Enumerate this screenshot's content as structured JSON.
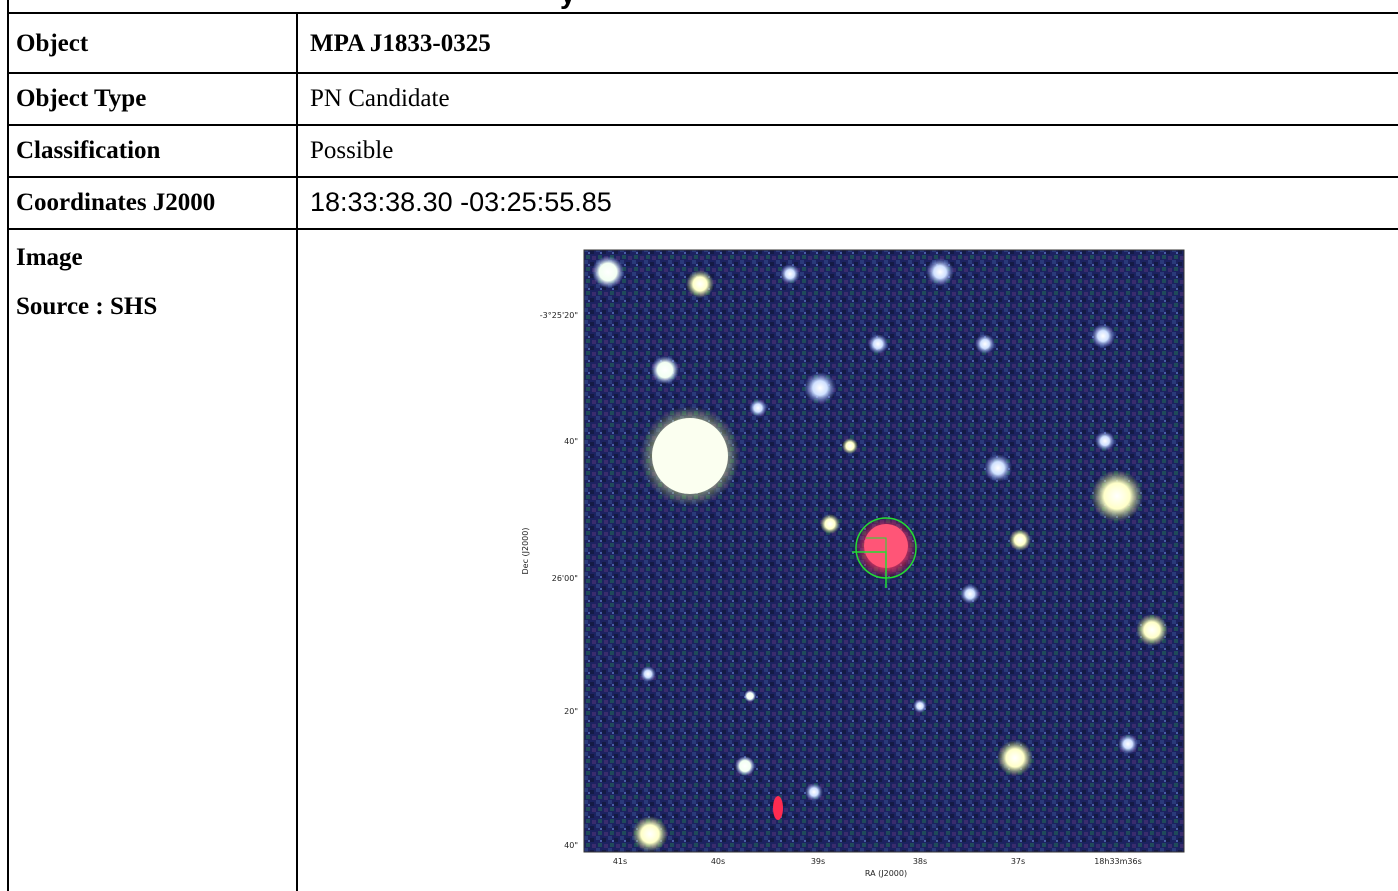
{
  "table": {
    "rows": [
      {
        "label": "Object",
        "value": "MPA J1833-0325"
      },
      {
        "label": "Object Type",
        "value": "PN Candidate"
      },
      {
        "label": "Classification",
        "value": "Possible"
      },
      {
        "label": "Coordinates J2000",
        "value": "18:33:38.30 -03:25:55.85"
      }
    ],
    "image_label": "Image",
    "image_source": "Source : SHS"
  },
  "figure": {
    "dec_ticks": [
      "-3°25'20\"",
      "40\"",
      "26'00\"",
      "20\"",
      "40\""
    ],
    "ra_ticks": [
      "41s",
      "40s",
      "39s",
      "38s",
      "37s",
      "18h33m36s"
    ],
    "ylabel": "Dec (J2000)",
    "xlabel": "RA (J2000)",
    "colors": {
      "background": "#1a1f55",
      "target": "#ff3a5e",
      "marker": "#22dd33"
    }
  }
}
